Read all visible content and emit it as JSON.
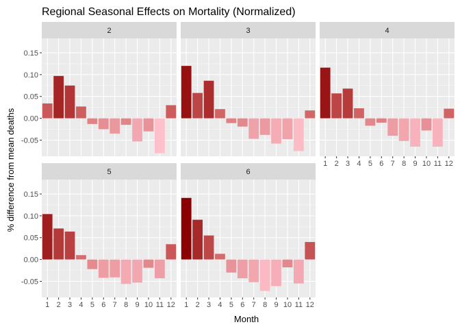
{
  "chart_data": {
    "type": "bar",
    "title": "Regional Seasonal Effects on Mortality (Normalized)",
    "xlabel": "Month",
    "ylabel": "% difference from mean deaths",
    "categories": [
      "1",
      "2",
      "3",
      "4",
      "5",
      "6",
      "7",
      "8",
      "9",
      "10",
      "11",
      "12"
    ],
    "ylim": [
      -0.087,
      0.183
    ],
    "y_ticks": [
      -0.05,
      0.0,
      0.05,
      0.1,
      0.15
    ],
    "y_tick_labels": [
      "-0.05",
      "0.00",
      "0.05",
      "0.10",
      "0.15"
    ],
    "grid": true,
    "legend": "none",
    "fill_scale": {
      "low_color": "#ffc0cb",
      "mid_color": "#cd5c5c",
      "high_color": "#8b0000",
      "low": -0.08,
      "mid": 0.03,
      "high": 0.14
    },
    "facets": [
      {
        "name": "2",
        "values": [
          0.034,
          0.097,
          0.075,
          0.027,
          -0.013,
          -0.025,
          -0.035,
          -0.015,
          -0.053,
          -0.03,
          -0.08,
          0.03
        ]
      },
      {
        "name": "3",
        "values": [
          0.12,
          0.058,
          0.086,
          0.021,
          -0.011,
          -0.019,
          -0.047,
          -0.038,
          -0.058,
          -0.048,
          -0.075,
          0.018
        ]
      },
      {
        "name": "4",
        "values": [
          0.116,
          0.057,
          0.068,
          0.023,
          -0.017,
          -0.01,
          -0.04,
          -0.052,
          -0.065,
          -0.028,
          -0.065,
          0.022
        ]
      },
      {
        "name": "5",
        "values": [
          0.104,
          0.071,
          0.064,
          0.01,
          -0.022,
          -0.042,
          -0.041,
          -0.056,
          -0.053,
          -0.019,
          -0.043,
          0.035
        ]
      },
      {
        "name": "6",
        "values": [
          0.141,
          0.091,
          0.055,
          0.013,
          -0.03,
          -0.043,
          -0.052,
          -0.072,
          -0.061,
          -0.018,
          -0.055,
          0.04
        ]
      }
    ]
  }
}
